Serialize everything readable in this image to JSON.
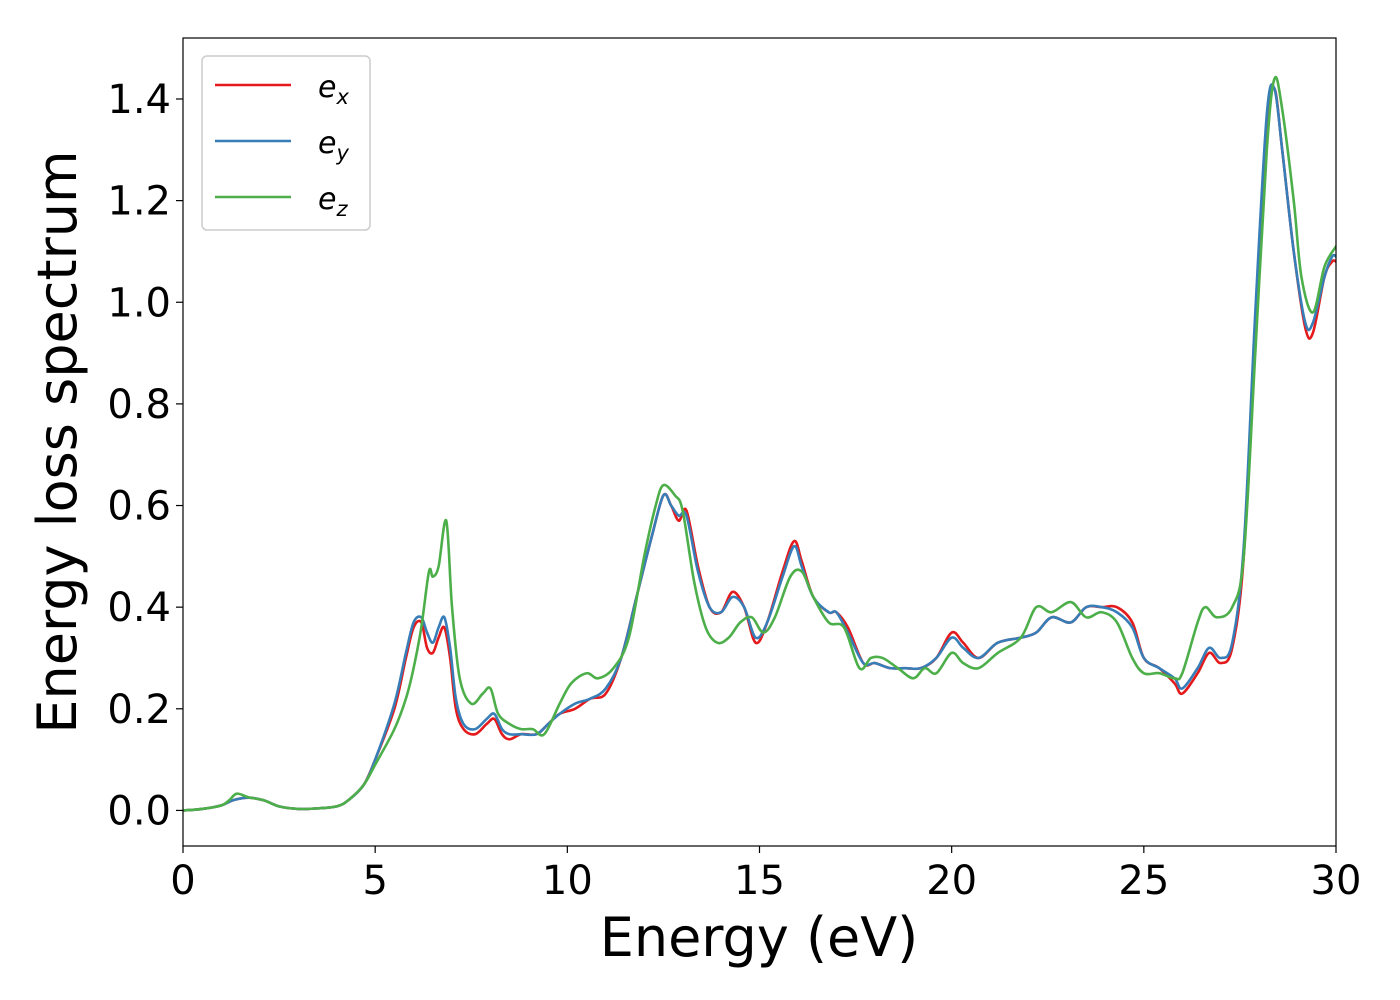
{
  "chart_data": {
    "type": "line",
    "xlabel": "Energy (eV)",
    "ylabel": "Energy loss spectrum",
    "xlim": [
      0,
      30
    ],
    "ylim": [
      -0.07,
      1.52
    ],
    "xticks": [
      0,
      5,
      10,
      15,
      20,
      25,
      30
    ],
    "yticks": [
      0.0,
      0.2,
      0.4,
      0.6,
      0.8,
      1.0,
      1.2,
      1.4
    ],
    "grid": false,
    "legend_position": "top-left",
    "series": [
      {
        "name": "e_x",
        "label_base": "e",
        "label_sub": "x",
        "color": "#e41a1c",
        "x": [
          0,
          0.5,
          1.0,
          1.3,
          1.7,
          2.1,
          2.5,
          3.0,
          3.5,
          4.0,
          4.3,
          4.7,
          5.0,
          5.5,
          5.8,
          6.0,
          6.2,
          6.35,
          6.5,
          6.65,
          6.8,
          6.95,
          7.1,
          7.3,
          7.6,
          7.9,
          8.1,
          8.3,
          8.5,
          8.8,
          9.2,
          9.5,
          9.8,
          10.2,
          10.6,
          11.0,
          11.4,
          11.8,
          12.2,
          12.5,
          12.7,
          12.9,
          13.1,
          13.4,
          13.7,
          14.0,
          14.3,
          14.6,
          14.9,
          15.2,
          15.6,
          15.9,
          16.1,
          16.4,
          16.8,
          17.0,
          17.3,
          17.7,
          18.0,
          18.4,
          18.8,
          19.2,
          19.6,
          20.0,
          20.3,
          20.7,
          21.2,
          21.8,
          22.2,
          22.6,
          23.1,
          23.5,
          23.9,
          24.3,
          24.7,
          25.0,
          25.4,
          25.8,
          26.0,
          26.4,
          26.7,
          27.0,
          27.3,
          27.6,
          27.9,
          28.2,
          28.4,
          28.6,
          28.9,
          29.2,
          29.4,
          29.7,
          29.9,
          30
        ],
        "y": [
          0,
          0.003,
          0.01,
          0.02,
          0.025,
          0.02,
          0.008,
          0.003,
          0.004,
          0.008,
          0.02,
          0.05,
          0.1,
          0.2,
          0.3,
          0.36,
          0.37,
          0.32,
          0.31,
          0.34,
          0.36,
          0.3,
          0.2,
          0.16,
          0.15,
          0.17,
          0.18,
          0.15,
          0.14,
          0.15,
          0.15,
          0.17,
          0.19,
          0.2,
          0.22,
          0.23,
          0.3,
          0.42,
          0.54,
          0.62,
          0.6,
          0.57,
          0.59,
          0.48,
          0.4,
          0.39,
          0.43,
          0.4,
          0.33,
          0.37,
          0.47,
          0.53,
          0.49,
          0.42,
          0.39,
          0.39,
          0.36,
          0.29,
          0.29,
          0.28,
          0.28,
          0.28,
          0.3,
          0.35,
          0.33,
          0.3,
          0.33,
          0.34,
          0.35,
          0.38,
          0.37,
          0.4,
          0.4,
          0.4,
          0.37,
          0.3,
          0.28,
          0.25,
          0.23,
          0.27,
          0.31,
          0.29,
          0.32,
          0.5,
          0.95,
          1.35,
          1.42,
          1.3,
          1.1,
          0.95,
          0.94,
          1.05,
          1.08,
          1.08
        ]
      },
      {
        "name": "e_y",
        "label_base": "e",
        "label_sub": "y",
        "color": "#377eb8",
        "x": [
          0,
          0.5,
          1.0,
          1.3,
          1.7,
          2.1,
          2.5,
          3.0,
          3.5,
          4.0,
          4.3,
          4.7,
          5.0,
          5.5,
          5.8,
          6.0,
          6.2,
          6.35,
          6.5,
          6.65,
          6.8,
          6.95,
          7.1,
          7.3,
          7.6,
          7.9,
          8.1,
          8.3,
          8.5,
          8.8,
          9.2,
          9.5,
          9.8,
          10.2,
          10.6,
          11.0,
          11.4,
          11.8,
          12.2,
          12.5,
          12.7,
          12.9,
          13.1,
          13.4,
          13.7,
          14.0,
          14.3,
          14.6,
          14.9,
          15.2,
          15.6,
          15.9,
          16.1,
          16.4,
          16.8,
          17.0,
          17.3,
          17.7,
          18.0,
          18.4,
          18.8,
          19.2,
          19.6,
          20.0,
          20.3,
          20.7,
          21.2,
          21.8,
          22.2,
          22.6,
          23.1,
          23.5,
          23.9,
          24.3,
          24.7,
          25.0,
          25.4,
          25.8,
          26.0,
          26.4,
          26.7,
          27.0,
          27.3,
          27.6,
          27.9,
          28.2,
          28.4,
          28.6,
          28.9,
          29.2,
          29.4,
          29.7,
          29.9,
          30
        ],
        "y": [
          0,
          0.003,
          0.01,
          0.02,
          0.025,
          0.02,
          0.008,
          0.003,
          0.004,
          0.008,
          0.02,
          0.05,
          0.1,
          0.21,
          0.31,
          0.37,
          0.38,
          0.35,
          0.33,
          0.36,
          0.38,
          0.32,
          0.22,
          0.17,
          0.16,
          0.18,
          0.19,
          0.16,
          0.15,
          0.15,
          0.15,
          0.17,
          0.19,
          0.21,
          0.22,
          0.24,
          0.3,
          0.42,
          0.54,
          0.62,
          0.6,
          0.58,
          0.58,
          0.47,
          0.4,
          0.39,
          0.42,
          0.4,
          0.34,
          0.37,
          0.46,
          0.52,
          0.48,
          0.42,
          0.39,
          0.39,
          0.35,
          0.29,
          0.29,
          0.28,
          0.28,
          0.28,
          0.3,
          0.34,
          0.32,
          0.3,
          0.33,
          0.34,
          0.35,
          0.38,
          0.37,
          0.4,
          0.4,
          0.39,
          0.36,
          0.3,
          0.28,
          0.26,
          0.24,
          0.28,
          0.32,
          0.3,
          0.33,
          0.52,
          0.98,
          1.37,
          1.42,
          1.3,
          1.1,
          0.96,
          0.96,
          1.05,
          1.09,
          1.09
        ]
      },
      {
        "name": "e_z",
        "label_base": "e",
        "label_sub": "z",
        "color": "#4daf4a",
        "x": [
          0,
          0.5,
          1.0,
          1.2,
          1.4,
          1.7,
          2.1,
          2.5,
          3.0,
          3.5,
          4.0,
          4.3,
          4.7,
          5.0,
          5.5,
          5.8,
          6.0,
          6.2,
          6.4,
          6.5,
          6.65,
          6.85,
          7.0,
          7.2,
          7.5,
          7.8,
          8.0,
          8.2,
          8.5,
          8.8,
          9.1,
          9.4,
          9.8,
          10.1,
          10.5,
          10.8,
          11.2,
          11.6,
          12.0,
          12.3,
          12.5,
          12.8,
          13.0,
          13.3,
          13.6,
          13.9,
          14.2,
          14.5,
          14.8,
          15.1,
          15.4,
          15.8,
          16.1,
          16.4,
          16.8,
          17.2,
          17.6,
          17.9,
          18.2,
          18.6,
          19.0,
          19.3,
          19.6,
          20.0,
          20.3,
          20.7,
          21.2,
          21.8,
          22.2,
          22.6,
          23.1,
          23.5,
          23.9,
          24.3,
          24.7,
          25.0,
          25.4,
          25.8,
          26.0,
          26.4,
          26.6,
          26.9,
          27.3,
          27.6,
          27.9,
          28.2,
          28.4,
          28.6,
          28.9,
          29.1,
          29.4,
          29.7,
          30
        ],
        "y": [
          0,
          0.003,
          0.01,
          0.02,
          0.033,
          0.026,
          0.02,
          0.008,
          0.003,
          0.004,
          0.008,
          0.02,
          0.05,
          0.09,
          0.16,
          0.22,
          0.28,
          0.36,
          0.47,
          0.46,
          0.48,
          0.57,
          0.4,
          0.26,
          0.21,
          0.23,
          0.24,
          0.19,
          0.17,
          0.16,
          0.16,
          0.15,
          0.21,
          0.25,
          0.27,
          0.26,
          0.28,
          0.34,
          0.5,
          0.6,
          0.64,
          0.62,
          0.59,
          0.45,
          0.36,
          0.33,
          0.34,
          0.37,
          0.38,
          0.35,
          0.38,
          0.46,
          0.47,
          0.42,
          0.37,
          0.36,
          0.28,
          0.3,
          0.3,
          0.28,
          0.26,
          0.28,
          0.27,
          0.31,
          0.29,
          0.28,
          0.31,
          0.34,
          0.4,
          0.39,
          0.41,
          0.38,
          0.39,
          0.37,
          0.3,
          0.27,
          0.27,
          0.26,
          0.27,
          0.37,
          0.4,
          0.38,
          0.4,
          0.5,
          0.9,
          1.3,
          1.44,
          1.38,
          1.2,
          1.05,
          0.98,
          1.07,
          1.11
        ]
      }
    ]
  }
}
